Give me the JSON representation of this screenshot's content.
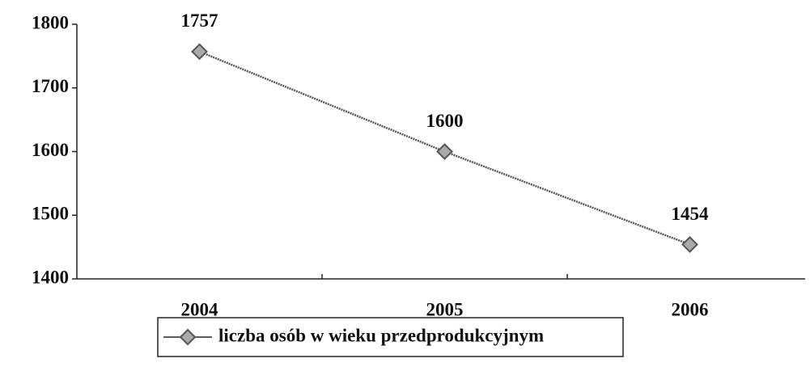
{
  "chart_data": {
    "type": "line",
    "categories": [
      "2004",
      "2005",
      "2006"
    ],
    "series": [
      {
        "name": "liczba osób w wieku przedprodukcyjnym",
        "color": "#555555",
        "values": [
          1757,
          1600,
          1454
        ]
      }
    ],
    "ylim": [
      1400,
      1800
    ],
    "yticks": [
      1400,
      1500,
      1600,
      1700,
      1800
    ],
    "grid": false,
    "legend": "bottom",
    "data_labels": true
  }
}
